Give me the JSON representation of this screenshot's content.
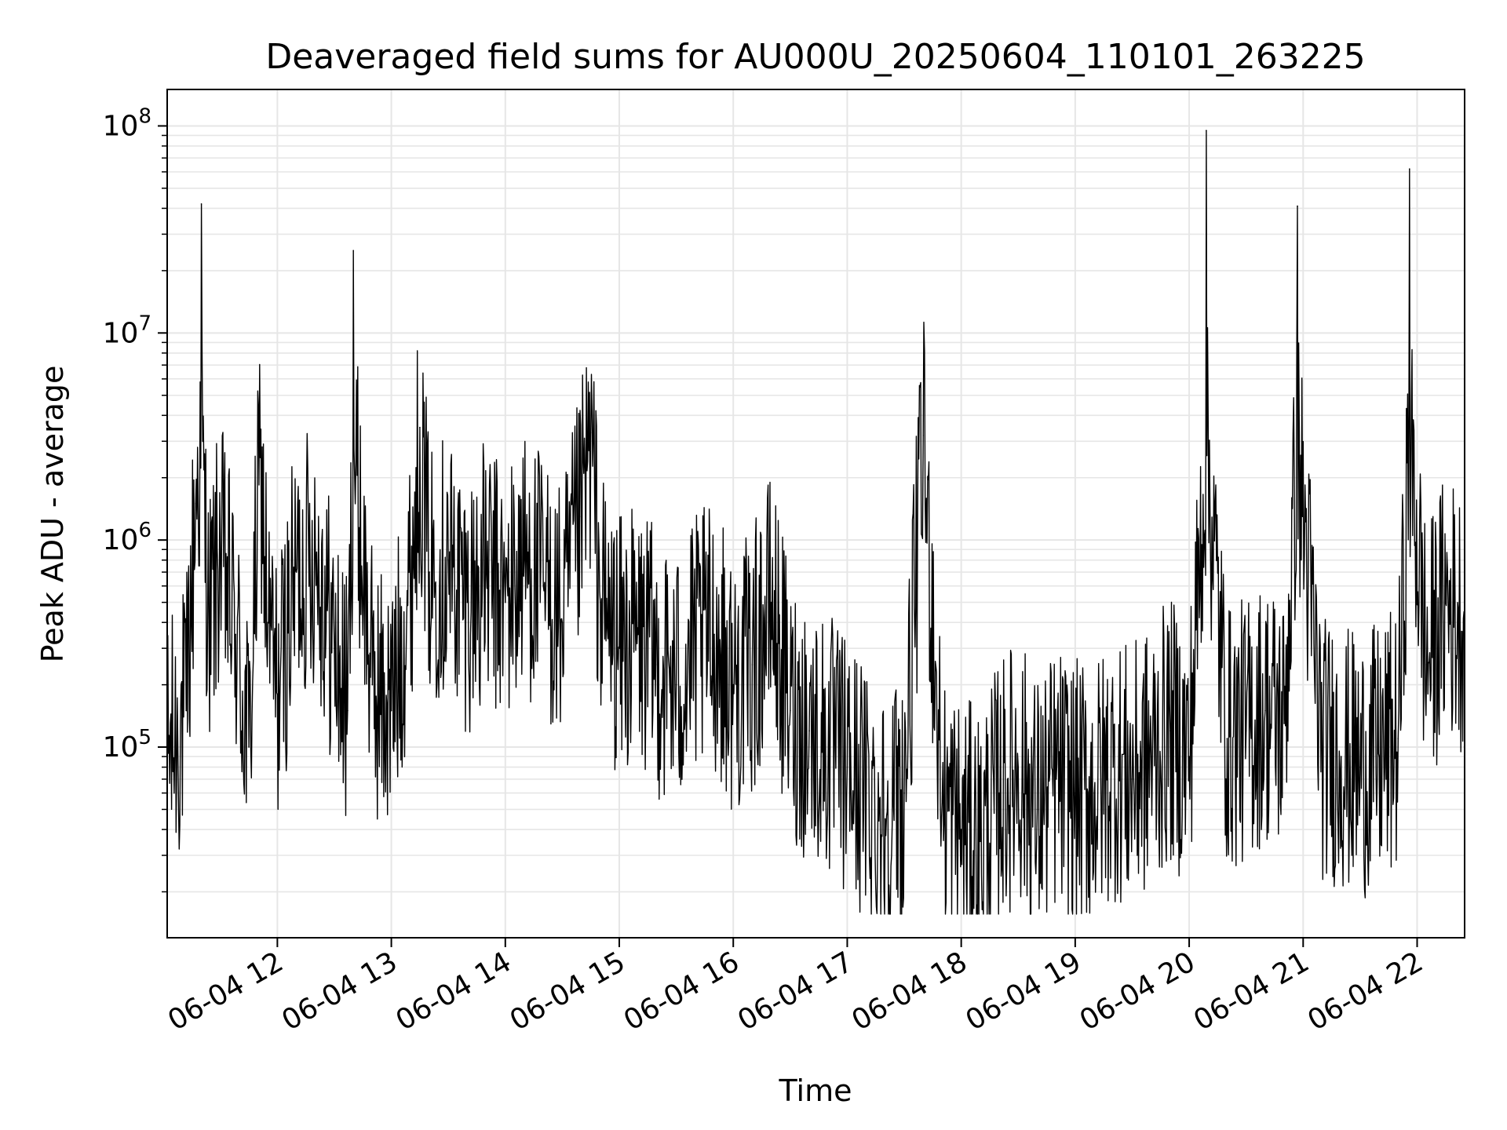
{
  "chart_data": {
    "type": "line",
    "title": "Deaveraged field sums for AU000U_20250604_110101_263225",
    "xlabel": "Time",
    "ylabel": "Peak ADU - average",
    "yscale": "log",
    "ylim": [
      12000,
      150000000
    ],
    "xlim": [
      "2025-06-04 11:02",
      "2025-06-04 22:25"
    ],
    "grid": true,
    "line_color": "#000000",
    "x_ticks": [
      {
        "value": "2025-06-04 12:00",
        "label": "06-04 12"
      },
      {
        "value": "2025-06-04 13:00",
        "label": "06-04 13"
      },
      {
        "value": "2025-06-04 14:00",
        "label": "06-04 14"
      },
      {
        "value": "2025-06-04 15:00",
        "label": "06-04 15"
      },
      {
        "value": "2025-06-04 16:00",
        "label": "06-04 16"
      },
      {
        "value": "2025-06-04 17:00",
        "label": "06-04 17"
      },
      {
        "value": "2025-06-04 18:00",
        "label": "06-04 18"
      },
      {
        "value": "2025-06-04 19:00",
        "label": "06-04 19"
      },
      {
        "value": "2025-06-04 20:00",
        "label": "06-04 20"
      },
      {
        "value": "2025-06-04 21:00",
        "label": "06-04 21"
      },
      {
        "value": "2025-06-04 22:00",
        "label": "06-04 22"
      }
    ],
    "y_ticks": [
      {
        "value": 100000,
        "base": "10",
        "exp": "5"
      },
      {
        "value": 1000000,
        "base": "10",
        "exp": "6"
      },
      {
        "value": 10000000,
        "base": "10",
        "exp": "7"
      },
      {
        "value": 100000000,
        "base": "10",
        "exp": "8"
      }
    ],
    "series": [
      {
        "x": [
          "2025-06-04 11:02",
          "2025-06-04 11:12",
          "2025-06-04 11:17",
          "2025-06-04 11:20",
          "2025-06-04 11:24",
          "2025-06-04 11:30",
          "2025-06-04 11:38",
          "2025-06-04 11:45",
          "2025-06-04 11:51",
          "2025-06-04 11:55",
          "2025-06-04 12:00",
          "2025-06-04 12:10",
          "2025-06-04 12:20",
          "2025-06-04 12:30",
          "2025-06-04 12:37",
          "2025-06-04 12:40",
          "2025-06-04 12:50",
          "2025-06-04 13:00",
          "2025-06-04 13:10",
          "2025-06-04 13:15",
          "2025-06-04 13:20",
          "2025-06-04 13:30",
          "2025-06-04 13:40",
          "2025-06-04 13:50",
          "2025-06-04 14:00",
          "2025-06-04 14:10",
          "2025-06-04 14:20",
          "2025-06-04 14:30",
          "2025-06-04 14:40",
          "2025-06-04 14:45",
          "2025-06-04 14:50",
          "2025-06-04 15:00",
          "2025-06-04 15:10",
          "2025-06-04 15:20",
          "2025-06-04 15:30",
          "2025-06-04 15:40",
          "2025-06-04 15:50",
          "2025-06-04 16:00",
          "2025-06-04 16:10",
          "2025-06-04 16:20",
          "2025-06-04 16:30",
          "2025-06-04 16:40",
          "2025-06-04 16:50",
          "2025-06-04 17:00",
          "2025-06-04 17:10",
          "2025-06-04 17:20",
          "2025-06-04 17:30",
          "2025-06-04 17:40",
          "2025-06-04 17:50",
          "2025-06-04 18:00",
          "2025-06-04 18:10",
          "2025-06-04 18:20",
          "2025-06-04 18:30",
          "2025-06-04 18:40",
          "2025-06-04 18:50",
          "2025-06-04 19:00",
          "2025-06-04 19:10",
          "2025-06-04 19:20",
          "2025-06-04 19:30",
          "2025-06-04 19:40",
          "2025-06-04 19:50",
          "2025-06-04 20:00",
          "2025-06-04 20:09",
          "2025-06-04 20:20",
          "2025-06-04 20:30",
          "2025-06-04 20:40",
          "2025-06-04 20:50",
          "2025-06-04 20:57",
          "2025-06-04 21:10",
          "2025-06-04 21:20",
          "2025-06-04 21:30",
          "2025-06-04 21:40",
          "2025-06-04 21:50",
          "2025-06-04 21:56",
          "2025-06-04 22:05",
          "2025-06-04 22:15",
          "2025-06-04 22:25"
        ],
        "y": [
          90000,
          150000,
          1500000,
          42000000,
          400000,
          900000,
          350000,
          100000,
          2500000,
          400000,
          180000,
          700000,
          900000,
          300000,
          150000,
          25000000,
          200000,
          150000,
          600000,
          3500000,
          700000,
          800000,
          500000,
          700000,
          500000,
          800000,
          600000,
          400000,
          1300000,
          3300000,
          500000,
          300000,
          350000,
          250000,
          200000,
          300000,
          350000,
          200000,
          250000,
          500000,
          150000,
          120000,
          100000,
          80000,
          60000,
          45000,
          60000,
          3200000,
          55000,
          40000,
          35000,
          60000,
          80000,
          50000,
          70000,
          60000,
          60000,
          80000,
          70000,
          90000,
          120000,
          90000,
          95000000,
          110000,
          120000,
          150000,
          130000,
          41000000,
          100000,
          90000,
          80000,
          90000,
          110000,
          62000000,
          250000,
          500000,
          400000
        ]
      }
    ]
  }
}
